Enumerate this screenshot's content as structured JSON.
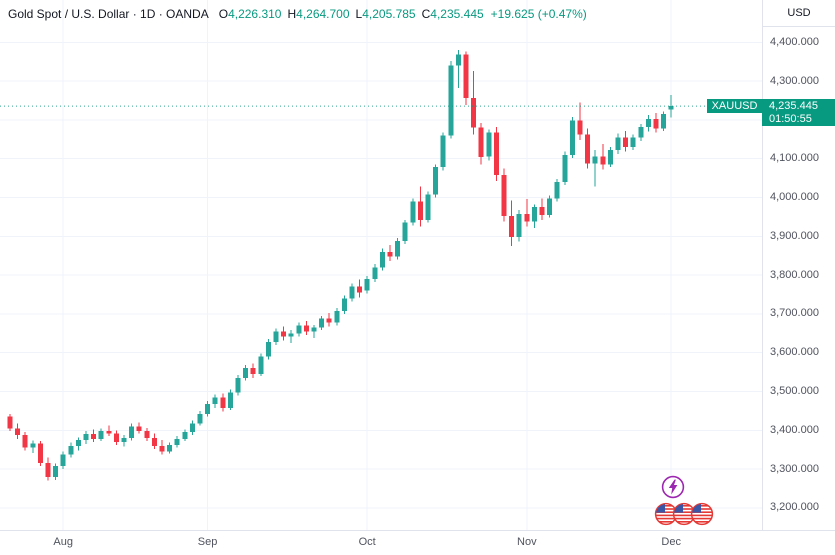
{
  "header": {
    "title": "Gold Spot / U.S. Dollar · 1D · OANDA",
    "ohlc": [
      {
        "label": "O",
        "value": "4,226.310"
      },
      {
        "label": "H",
        "value": "4,264.700"
      },
      {
        "label": "L",
        "value": "4,205.785"
      },
      {
        "label": "C",
        "value": "4,235.445"
      }
    ],
    "change": "+19.625 (+0.47%)"
  },
  "price_axis": {
    "currency_label": "USD",
    "badge": {
      "symbol": "XAUUSD",
      "price": "4,235.445",
      "countdown": "01:50:55"
    }
  },
  "stickers": {
    "lightning": "lightning-bolt-sticker",
    "flags": "us-flag-stickers"
  },
  "chart_data": {
    "type": "candlestick",
    "title": "Gold Spot / U.S. Dollar",
    "symbol": "XAUUSD",
    "interval": "1D",
    "exchange": "OANDA",
    "last_price": 4235.445,
    "ohlc_current": {
      "open": 4226.31,
      "high": 4264.7,
      "low": 4205.785,
      "close": 4235.445,
      "change": 19.625,
      "change_pct": 0.47
    },
    "ylim": [
      3143,
      4509
    ],
    "grid": true,
    "y_ticks": [
      {
        "value": 4400,
        "label": "4,400.000"
      },
      {
        "value": 4300,
        "label": "4,300.000"
      },
      {
        "value": 4200,
        "label": "4,200.000"
      },
      {
        "value": 4100,
        "label": "4,100.000"
      },
      {
        "value": 4000,
        "label": "4,000.000"
      },
      {
        "value": 3900,
        "label": "3,900.000"
      },
      {
        "value": 3800,
        "label": "3,800.000"
      },
      {
        "value": 3700,
        "label": "3,700.000"
      },
      {
        "value": 3600,
        "label": "3,600.000"
      },
      {
        "value": 3500,
        "label": "3,500.000"
      },
      {
        "value": 3400,
        "label": "3,400.000"
      },
      {
        "value": 3300,
        "label": "3,300.000"
      },
      {
        "value": 3200,
        "label": "3,200.000"
      }
    ],
    "x_axis_months": [
      {
        "label": "Aug",
        "index": 7
      },
      {
        "label": "Sep",
        "index": 26
      },
      {
        "label": "Oct",
        "index": 47
      },
      {
        "label": "Nov",
        "index": 68
      },
      {
        "label": "Dec",
        "index": 87
      }
    ],
    "colors": {
      "up": "#26a69a",
      "down": "#f23645",
      "grid": "#f0f3fa",
      "axis_text": "#50535e",
      "badge": "#089981"
    },
    "candles": [
      [
        3435,
        3442,
        3398,
        3405
      ],
      [
        3405,
        3418,
        3378,
        3388
      ],
      [
        3388,
        3396,
        3348,
        3356
      ],
      [
        3356,
        3374,
        3342,
        3366
      ],
      [
        3366,
        3372,
        3308,
        3316
      ],
      [
        3316,
        3330,
        3270,
        3280
      ],
      [
        3280,
        3315,
        3272,
        3308
      ],
      [
        3308,
        3345,
        3300,
        3338
      ],
      [
        3338,
        3368,
        3330,
        3360
      ],
      [
        3360,
        3382,
        3348,
        3375
      ],
      [
        3375,
        3398,
        3365,
        3390
      ],
      [
        3390,
        3402,
        3370,
        3378
      ],
      [
        3378,
        3405,
        3372,
        3398
      ],
      [
        3398,
        3412,
        3385,
        3392
      ],
      [
        3392,
        3400,
        3362,
        3370
      ],
      [
        3370,
        3388,
        3358,
        3380
      ],
      [
        3380,
        3418,
        3374,
        3410
      ],
      [
        3410,
        3420,
        3392,
        3398
      ],
      [
        3398,
        3406,
        3372,
        3380
      ],
      [
        3380,
        3392,
        3352,
        3360
      ],
      [
        3360,
        3375,
        3338,
        3345
      ],
      [
        3345,
        3368,
        3340,
        3362
      ],
      [
        3362,
        3385,
        3355,
        3378
      ],
      [
        3378,
        3402,
        3372,
        3395
      ],
      [
        3395,
        3425,
        3388,
        3418
      ],
      [
        3418,
        3450,
        3412,
        3442
      ],
      [
        3442,
        3475,
        3435,
        3468
      ],
      [
        3468,
        3492,
        3458,
        3485
      ],
      [
        3485,
        3495,
        3448,
        3458
      ],
      [
        3458,
        3505,
        3452,
        3498
      ],
      [
        3498,
        3542,
        3490,
        3535
      ],
      [
        3535,
        3568,
        3528,
        3560
      ],
      [
        3560,
        3572,
        3535,
        3545
      ],
      [
        3545,
        3598,
        3540,
        3590
      ],
      [
        3590,
        3635,
        3582,
        3628
      ],
      [
        3628,
        3662,
        3620,
        3655
      ],
      [
        3655,
        3668,
        3632,
        3642
      ],
      [
        3642,
        3658,
        3625,
        3650
      ],
      [
        3650,
        3678,
        3642,
        3670
      ],
      [
        3670,
        3682,
        3645,
        3655
      ],
      [
        3655,
        3672,
        3638,
        3665
      ],
      [
        3665,
        3695,
        3658,
        3688
      ],
      [
        3688,
        3702,
        3668,
        3678
      ],
      [
        3678,
        3715,
        3670,
        3708
      ],
      [
        3708,
        3748,
        3700,
        3740
      ],
      [
        3740,
        3778,
        3732,
        3770
      ],
      [
        3770,
        3788,
        3742,
        3755
      ],
      [
        3760,
        3798,
        3752,
        3790
      ],
      [
        3790,
        3828,
        3782,
        3820
      ],
      [
        3820,
        3868,
        3812,
        3860
      ],
      [
        3860,
        3878,
        3836,
        3848
      ],
      [
        3848,
        3895,
        3840,
        3888
      ],
      [
        3888,
        3942,
        3880,
        3935
      ],
      [
        3935,
        3998,
        3928,
        3990
      ],
      [
        3990,
        4028,
        3925,
        3942
      ],
      [
        3942,
        4015,
        3935,
        4008
      ],
      [
        4008,
        4085,
        4000,
        4078
      ],
      [
        4078,
        4168,
        4070,
        4160
      ],
      [
        4160,
        4352,
        4152,
        4340
      ],
      [
        4340,
        4380,
        4282,
        4368
      ],
      [
        4368,
        4376,
        4238,
        4256
      ],
      [
        4256,
        4326,
        4162,
        4180
      ],
      [
        4180,
        4192,
        4085,
        4105
      ],
      [
        4105,
        4175,
        4095,
        4168
      ],
      [
        4168,
        4182,
        4042,
        4058
      ],
      [
        4058,
        4075,
        3938,
        3952
      ],
      [
        3952,
        3992,
        3875,
        3898
      ],
      [
        3898,
        3968,
        3886,
        3958
      ],
      [
        3958,
        3996,
        3925,
        3938
      ],
      [
        3938,
        3982,
        3922,
        3975
      ],
      [
        3975,
        3998,
        3942,
        3955
      ],
      [
        3955,
        4005,
        3948,
        3998
      ],
      [
        3998,
        4048,
        3990,
        4040
      ],
      [
        4040,
        4118,
        4032,
        4110
      ],
      [
        4110,
        4208,
        4102,
        4198
      ],
      [
        4198,
        4245,
        4148,
        4162
      ],
      [
        4162,
        4178,
        4075,
        4088
      ],
      [
        4088,
        4122,
        4028,
        4105
      ],
      [
        4105,
        4138,
        4072,
        4085
      ],
      [
        4085,
        4130,
        4078,
        4122
      ],
      [
        4122,
        4165,
        4112,
        4155
      ],
      [
        4155,
        4172,
        4118,
        4130
      ],
      [
        4130,
        4162,
        4122,
        4155
      ],
      [
        4155,
        4190,
        4145,
        4182
      ],
      [
        4182,
        4212,
        4170,
        4202
      ],
      [
        4202,
        4218,
        4168,
        4178
      ],
      [
        4178,
        4222,
        4172,
        4215.8
      ],
      [
        4226.31,
        4264.7,
        4205.79,
        4235.45
      ]
    ]
  }
}
